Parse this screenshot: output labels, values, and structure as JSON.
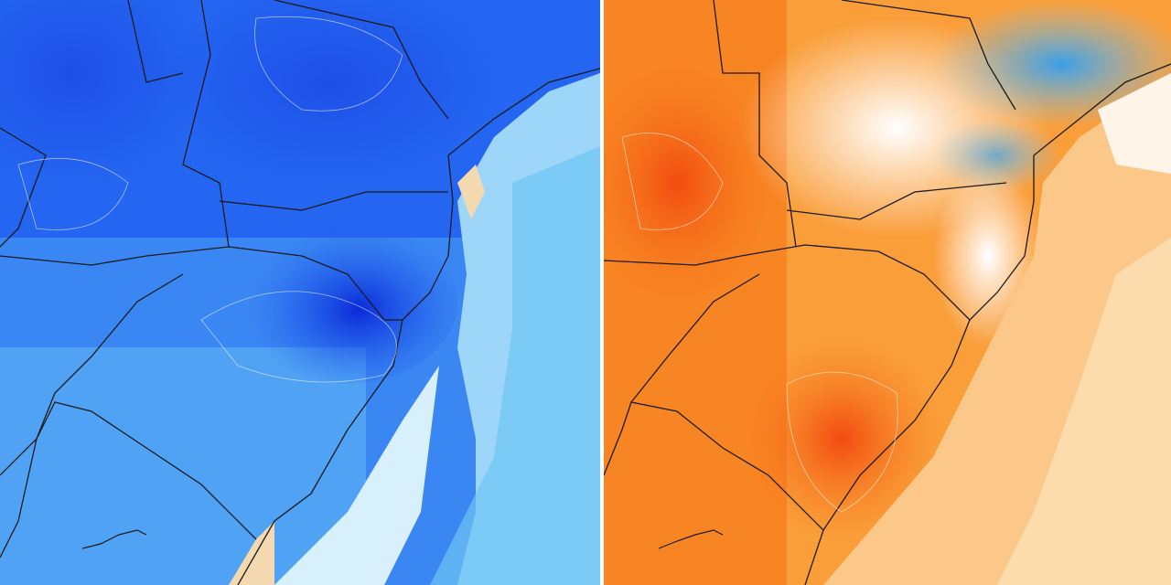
{
  "panels": [
    {
      "id": "cold-anomaly",
      "palette": [
        "#0a2ad8",
        "#1f5cf0",
        "#3c8cf5",
        "#66b8f5",
        "#a8dcfa",
        "#e6f6fd",
        "#f4d9b0"
      ]
    },
    {
      "id": "warm-anomaly",
      "palette": [
        "#f24a10",
        "#f77a1a",
        "#fa9e3a",
        "#fcc27a",
        "#fde0b4",
        "#ffffff",
        "#7cc8f0",
        "#2f9ae6"
      ]
    }
  ],
  "colors": {
    "border_lines": "#1a1a1a",
    "contours": "#ffffff"
  }
}
